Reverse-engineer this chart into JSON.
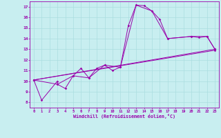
{
  "xlabel": "Windchill (Refroidissement éolien,°C)",
  "xlim": [
    -0.5,
    23.5
  ],
  "ylim": [
    7.5,
    17.5
  ],
  "xticks": [
    0,
    1,
    2,
    3,
    4,
    5,
    6,
    7,
    8,
    9,
    10,
    11,
    12,
    13,
    14,
    15,
    16,
    17,
    18,
    19,
    20,
    21,
    22,
    23
  ],
  "yticks": [
    8,
    9,
    10,
    11,
    12,
    13,
    14,
    15,
    16,
    17
  ],
  "bg_color": "#c8eef0",
  "line_color": "#9900aa",
  "grid_color": "#aadde0",
  "series": [
    {
      "x": [
        0,
        1,
        3,
        3,
        4,
        5,
        6,
        7,
        8,
        9,
        10,
        11,
        12,
        13,
        14,
        15,
        16,
        17,
        20,
        21,
        22,
        23
      ],
      "y": [
        10.1,
        8.2,
        10.0,
        9.7,
        9.3,
        10.5,
        11.2,
        10.3,
        11.2,
        11.5,
        11.0,
        11.3,
        15.2,
        17.15,
        17.1,
        16.6,
        15.8,
        14.0,
        14.2,
        14.1,
        14.2,
        13.0
      ]
    },
    {
      "x": [
        0,
        3,
        5,
        7,
        9,
        11,
        13,
        15,
        17,
        20,
        22,
        23
      ],
      "y": [
        10.1,
        9.7,
        10.5,
        10.3,
        11.5,
        11.3,
        17.15,
        16.6,
        14.0,
        14.2,
        14.2,
        13.0
      ]
    },
    {
      "x": [
        0,
        23
      ],
      "y": [
        10.1,
        13.0
      ]
    },
    {
      "x": [
        0,
        23
      ],
      "y": [
        10.1,
        12.9
      ]
    }
  ]
}
